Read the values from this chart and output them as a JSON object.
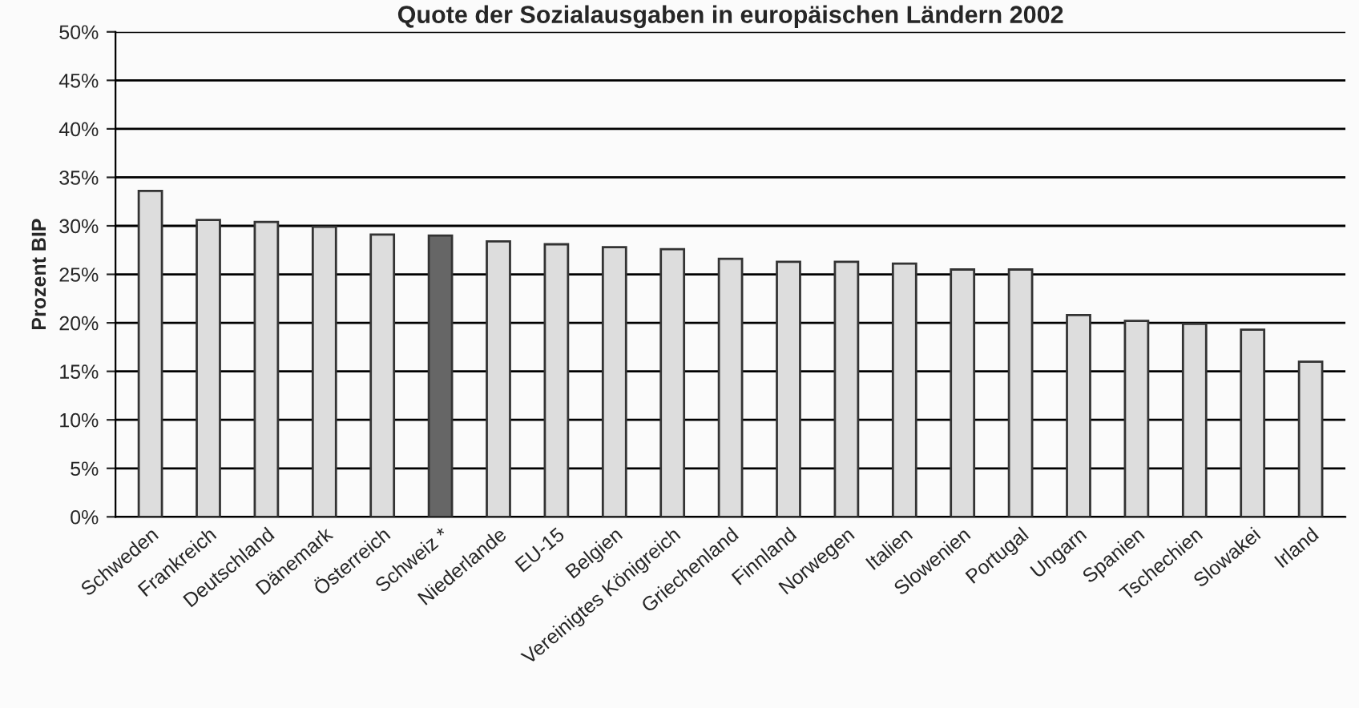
{
  "chart_data": {
    "type": "bar",
    "title": "Quote der Sozialausgaben in europäischen Ländern 2002",
    "ylabel": "Prozent BIP",
    "categories": [
      "Schweden",
      "Frankreich",
      "Deutschland",
      "Dänemark",
      "Österreich",
      "Schweiz *",
      "Niederlande",
      "EU-15",
      "Belgien",
      "Vereinigtes Königreich",
      "Griechenland",
      "Finnland",
      "Norwegen",
      "Italien",
      "Slowenien",
      "Portugal",
      "Ungarn",
      "Spanien",
      "Tschechien",
      "Slowakei",
      "Irland"
    ],
    "values": [
      33.6,
      30.6,
      30.4,
      29.9,
      29.1,
      29.0,
      28.4,
      28.1,
      27.8,
      27.6,
      26.6,
      26.3,
      26.3,
      26.1,
      25.5,
      25.5,
      20.8,
      20.2,
      19.9,
      19.3,
      16.0
    ],
    "colors": [
      "#dddddd",
      "#dddddd",
      "#dddddd",
      "#dddddd",
      "#dddddd",
      "#666666",
      "#dddddd",
      "#dddddd",
      "#dddddd",
      "#dddddd",
      "#dddddd",
      "#dddddd",
      "#dddddd",
      "#dddddd",
      "#dddddd",
      "#dddddd",
      "#dddddd",
      "#dddddd",
      "#dddddd",
      "#dddddd",
      "#dddddd"
    ],
    "ylim": [
      0,
      50
    ],
    "yticks": [
      {
        "value": 0,
        "label": "0%"
      },
      {
        "value": 5,
        "label": "5%"
      },
      {
        "value": 10,
        "label": "10%"
      },
      {
        "value": 15,
        "label": "15%"
      },
      {
        "value": 20,
        "label": "20%"
      },
      {
        "value": 25,
        "label": "25%"
      },
      {
        "value": 30,
        "label": "30%"
      },
      {
        "value": 35,
        "label": "35%"
      },
      {
        "value": 40,
        "label": "40%"
      },
      {
        "value": 45,
        "label": "45%"
      },
      {
        "value": 50,
        "label": "50%"
      }
    ],
    "grid": "y"
  }
}
